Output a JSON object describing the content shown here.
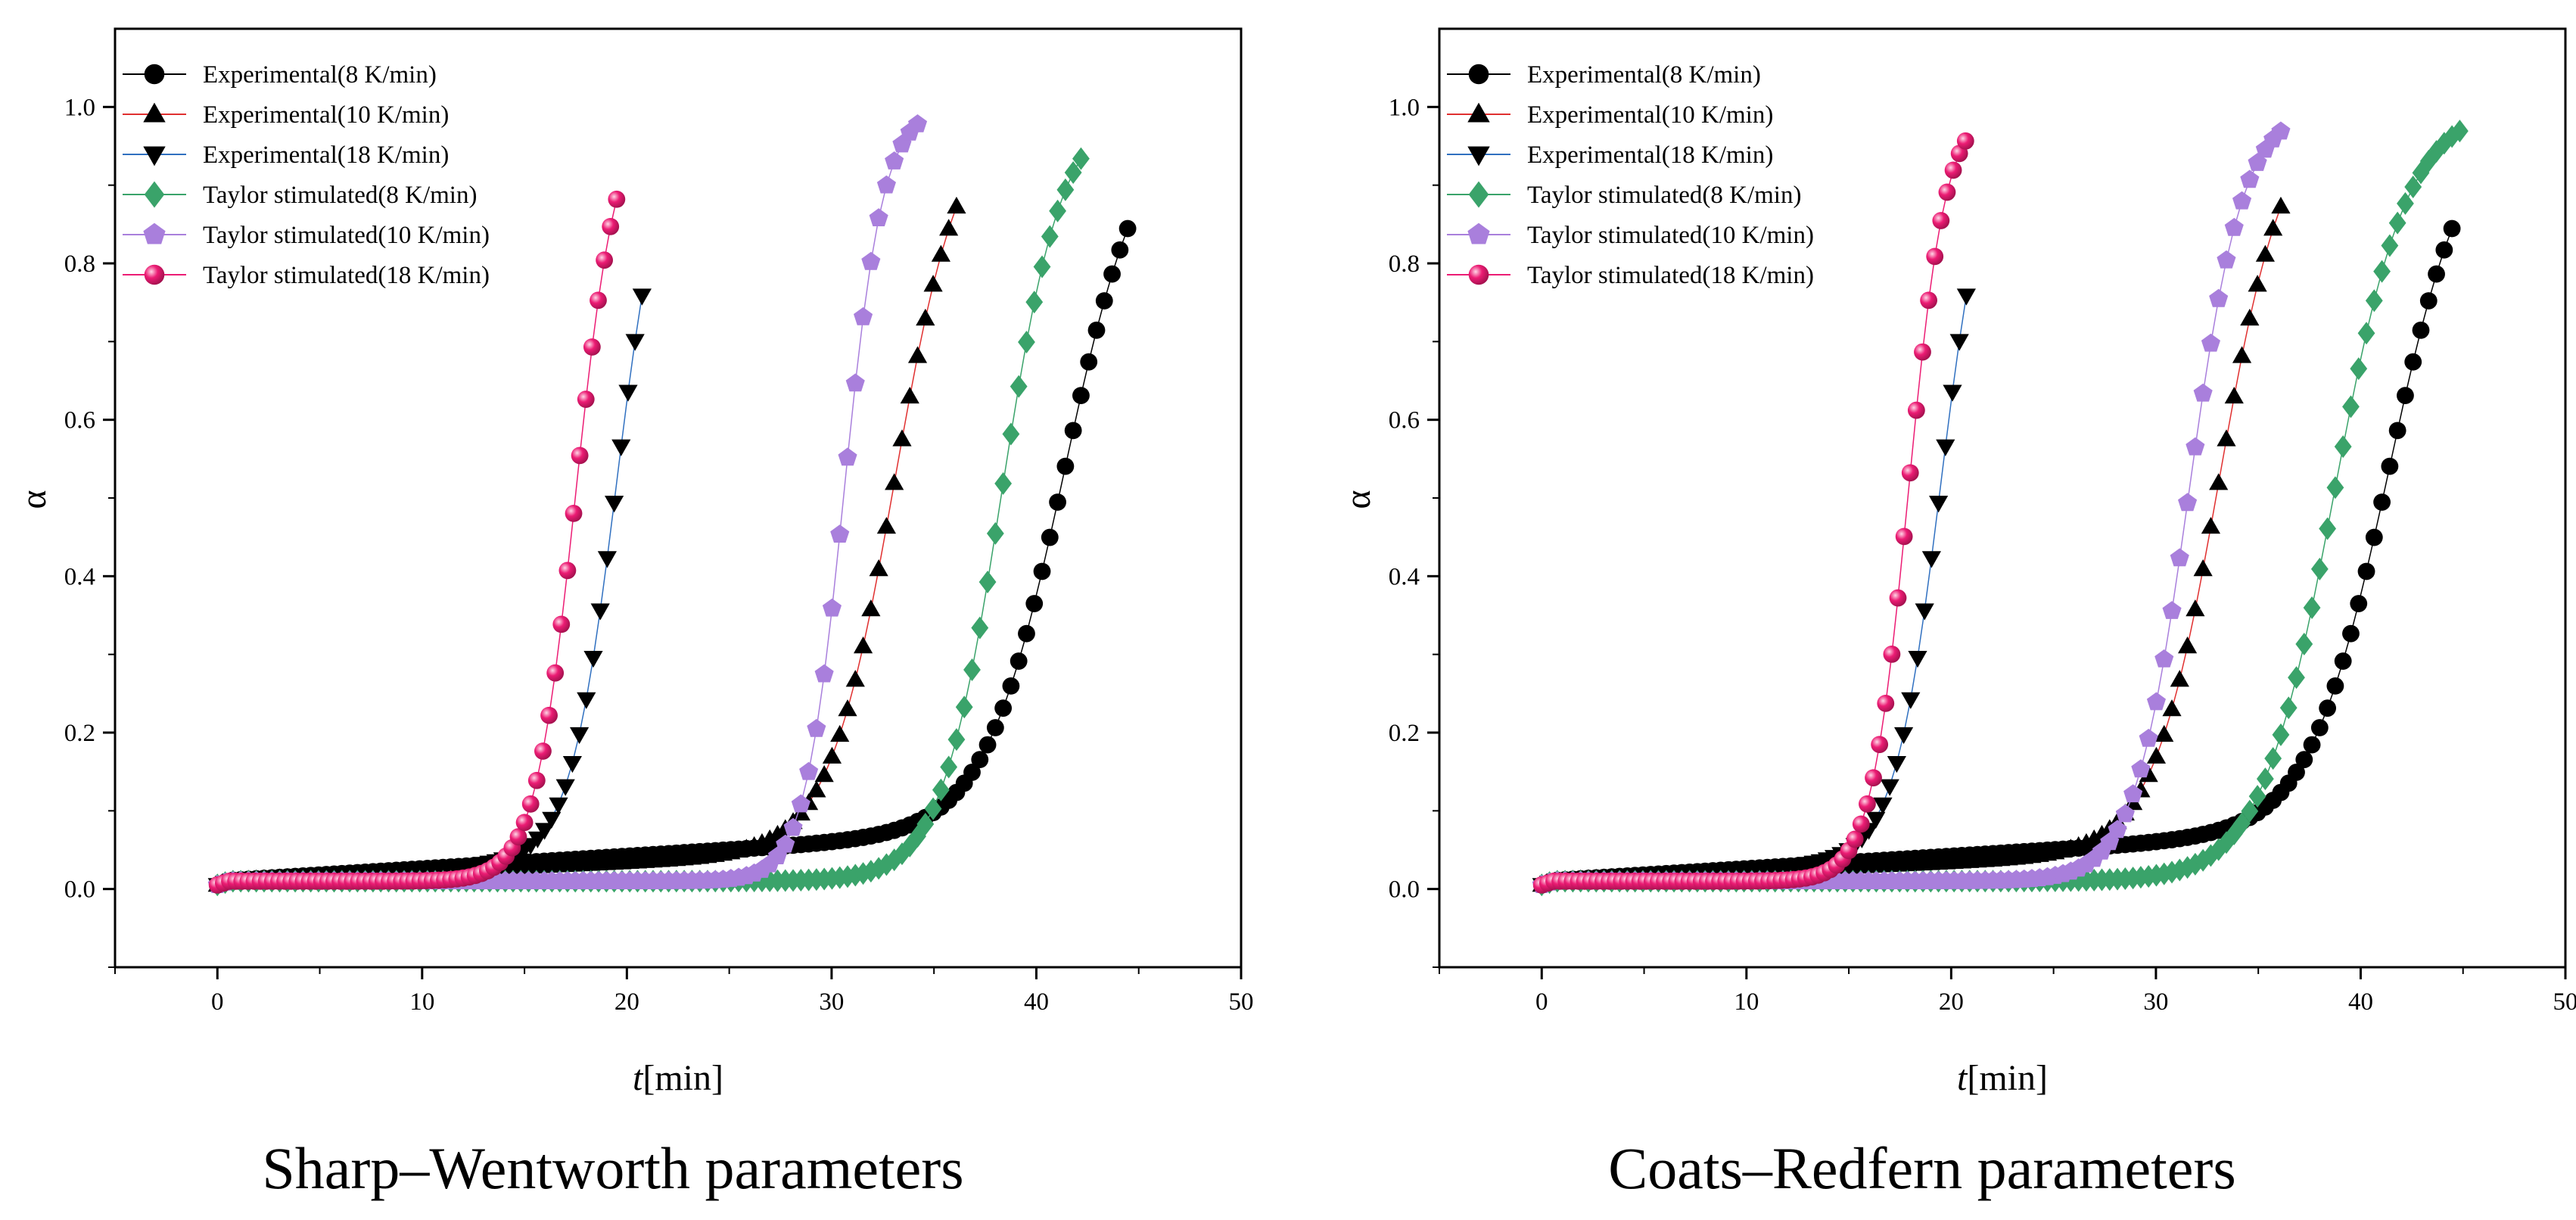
{
  "chart_data": [
    {
      "type": "scatter",
      "caption": "Sharp–Wentworth parameters",
      "xlabel_italic": "t",
      "xlabel_rest": "[min]",
      "ylabel": "α",
      "xlim": [
        -5,
        50
      ],
      "ylim": [
        -0.1,
        1.1
      ],
      "xticks": [
        "0",
        "10",
        "20",
        "30",
        "40",
        "50"
      ],
      "yticks": [
        "0.0",
        "0.2",
        "0.4",
        "0.6",
        "0.8",
        "1.0"
      ],
      "legend_position": "top-left",
      "series": [
        {
          "name": "Experimental(8 K/min)",
          "marker": "circle",
          "color": "#000000",
          "line": "#000000",
          "t_start": 0,
          "t_end": 44.8,
          "dt": 0.38,
          "t_mid": 41.4,
          "k": 0.52,
          "c": 0.01,
          "m": 0.0016,
          "q": 0
        },
        {
          "name": "Experimental(10 K/min)",
          "marker": "triangle-up",
          "color": "#000000",
          "line": "#e03030",
          "t_start": 0,
          "t_end": 36.4,
          "dt": 0.38,
          "t_mid": 33.1,
          "k": 0.62,
          "c": 0.01,
          "m": 0.0012,
          "q": 0
        },
        {
          "name": "Experimental(18 K/min)",
          "marker": "triangle-down",
          "color": "#000000",
          "line": "#3070c0",
          "t_start": 0,
          "t_end": 21.0,
          "dt": 0.34,
          "t_mid": 19.5,
          "k": 0.88,
          "c": 0.01,
          "m": 0.0015,
          "q": 0
        },
        {
          "name": "Taylor stimulated(8 K/min)",
          "marker": "diamond",
          "color": "#3aa36a",
          "line": "#3aa36a",
          "t_start": 0,
          "t_end": 42.3,
          "dt": 0.38,
          "t_mid": 38.3,
          "k": 0.68,
          "c": 0.01,
          "m": 0,
          "q": 0.65
        },
        {
          "name": "Taylor stimulated(10 K/min)",
          "marker": "pentagon",
          "color": "#a97fdc",
          "line": "#a97fdc",
          "t_start": 0,
          "t_end": 34.4,
          "dt": 0.38,
          "t_mid": 30.6,
          "k": 1.05,
          "c": 0.01,
          "m": 0,
          "q": 0.65
        },
        {
          "name": "Taylor stimulated(18 K/min)",
          "marker": "sphere",
          "color": "#ec1c74",
          "line": "#ec1c74",
          "t_start": 0,
          "t_end": 19.5,
          "dt": 0.3,
          "t_mid": 17.5,
          "k": 1.0,
          "c": 0.01,
          "m": 0,
          "q": 0.75
        }
      ]
    },
    {
      "type": "scatter",
      "caption": "Coats–Redfern parameters",
      "xlabel_italic": "t",
      "xlabel_rest": "[min]",
      "ylabel": "α",
      "xlim": [
        -5,
        50
      ],
      "ylim": [
        -0.1,
        1.1
      ],
      "xticks": [
        "0",
        "10",
        "20",
        "30",
        "40",
        "50"
      ],
      "yticks": [
        "0.0",
        "0.2",
        "0.4",
        "0.6",
        "0.8",
        "1.0"
      ],
      "legend_position": "top-left",
      "series": [
        {
          "name": "Experimental(8 K/min)",
          "marker": "circle",
          "color": "#000000",
          "line": "#000000",
          "t_start": 0,
          "t_end": 44.8,
          "dt": 0.38,
          "t_mid": 41.4,
          "k": 0.52,
          "c": 0.01,
          "m": 0.0016,
          "q": 0
        },
        {
          "name": "Experimental(10 K/min)",
          "marker": "triangle-up",
          "color": "#000000",
          "line": "#e03030",
          "t_start": 0,
          "t_end": 36.4,
          "dt": 0.38,
          "t_mid": 33.1,
          "k": 0.62,
          "c": 0.01,
          "m": 0.0012,
          "q": 0
        },
        {
          "name": "Experimental(18 K/min)",
          "marker": "triangle-down",
          "color": "#000000",
          "line": "#3070c0",
          "t_start": 0,
          "t_end": 21.0,
          "dt": 0.34,
          "t_mid": 19.5,
          "k": 0.88,
          "c": 0.01,
          "m": 0.0015,
          "q": 0
        },
        {
          "name": "Taylor stimulated(8 K/min)",
          "marker": "diamond",
          "color": "#3aa36a",
          "line": "#3aa36a",
          "t_start": 0,
          "t_end": 45.0,
          "dt": 0.38,
          "t_mid": 38.7,
          "k": 0.56,
          "c": 0.01,
          "m": 0,
          "q": 0.65
        },
        {
          "name": "Taylor stimulated(10 K/min)",
          "marker": "pentagon",
          "color": "#a97fdc",
          "line": "#a97fdc",
          "t_start": 0,
          "t_end": 36.3,
          "dt": 0.38,
          "t_mid": 31.6,
          "k": 0.76,
          "c": 0.01,
          "m": 0,
          "q": 0.65
        },
        {
          "name": "Taylor stimulated(18 K/min)",
          "marker": "sphere",
          "color": "#ec1c74",
          "line": "#ec1c74",
          "t_start": 0,
          "t_end": 20.8,
          "dt": 0.3,
          "t_mid": 17.9,
          "k": 1.1,
          "c": 0.01,
          "m": 0,
          "q": 0.75
        }
      ]
    }
  ]
}
